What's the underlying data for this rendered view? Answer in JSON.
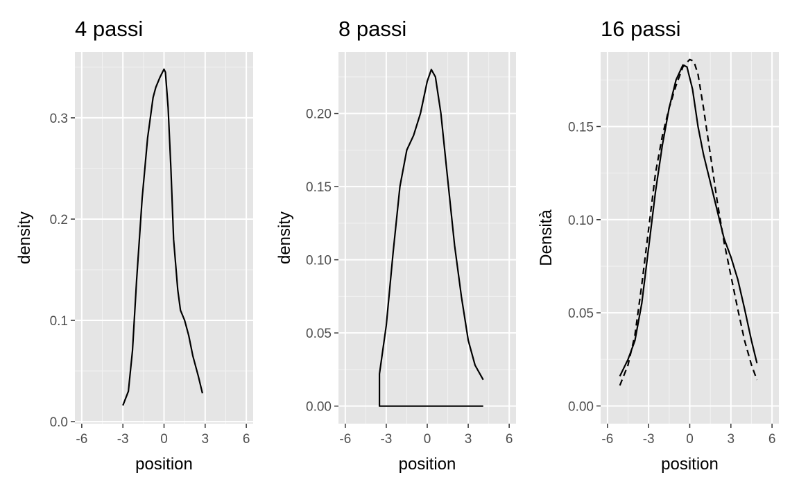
{
  "colors": {
    "panel_background": "#e5e5e5",
    "grid_major": "#ffffff",
    "grid_minor": "#f2f2f2",
    "tick_text": "#4d4d4d",
    "line": "#000000"
  },
  "chart_data": [
    {
      "type": "line",
      "title": "4 passi",
      "xlabel": "position",
      "ylabel": "density",
      "xlim": [
        -6.5,
        6.5
      ],
      "ylim": [
        -0.002,
        0.365
      ],
      "xticks": [
        -6,
        -3,
        0,
        3,
        6
      ],
      "xticklabels": [
        "-6",
        "-3",
        "0",
        "3",
        "6"
      ],
      "yticks": [
        0.0,
        0.1,
        0.2,
        0.3
      ],
      "yticklabels": [
        "0.0",
        "0.1",
        "0.2",
        "0.3"
      ],
      "grid": true,
      "legend": "none",
      "series": [
        {
          "style": "solid",
          "x": [
            -3.0,
            -2.6,
            -2.3,
            -2.0,
            -1.6,
            -1.2,
            -0.8,
            -0.6,
            -0.3,
            0.0,
            0.1,
            0.3,
            0.5,
            0.7,
            1.0,
            1.2,
            1.5,
            1.8,
            2.1,
            2.5,
            2.8
          ],
          "y": [
            0.016,
            0.03,
            0.07,
            0.14,
            0.22,
            0.28,
            0.32,
            0.33,
            0.34,
            0.348,
            0.345,
            0.31,
            0.25,
            0.18,
            0.13,
            0.11,
            0.1,
            0.085,
            0.065,
            0.045,
            0.028
          ]
        }
      ]
    },
    {
      "type": "line",
      "title": "8 passi",
      "xlabel": "position",
      "ylabel": "density",
      "xlim": [
        -6.5,
        6.5
      ],
      "ylim": [
        -0.012,
        0.242
      ],
      "xticks": [
        -6,
        -3,
        0,
        3,
        6
      ],
      "xticklabels": [
        "-6",
        "-3",
        "0",
        "3",
        "6"
      ],
      "yticks": [
        0.0,
        0.05,
        0.1,
        0.15,
        0.2
      ],
      "yticklabels": [
        "0.00",
        "0.05",
        "0.10",
        "0.15",
        "0.20"
      ],
      "grid": true,
      "legend": "none",
      "series": [
        {
          "style": "solid",
          "x": [
            4.1,
            4.1,
            -3.5,
            -3.5,
            -3.0,
            -2.5,
            -2.0,
            -1.5,
            -1.0,
            -0.5,
            0.0,
            0.3,
            0.6,
            1.0,
            1.5,
            2.0,
            2.5,
            3.0,
            3.5,
            4.1
          ],
          "y": [
            0.0,
            0.0,
            0.0,
            0.022,
            0.055,
            0.105,
            0.15,
            0.175,
            0.185,
            0.2,
            0.222,
            0.23,
            0.225,
            0.2,
            0.155,
            0.11,
            0.075,
            0.045,
            0.028,
            0.018
          ]
        }
      ]
    },
    {
      "type": "line",
      "title": "16 passi",
      "xlabel": "position",
      "ylabel": "Densità",
      "xlim": [
        -6.5,
        6.5
      ],
      "ylim": [
        -0.0095,
        0.19
      ],
      "xticks": [
        -6,
        -3,
        0,
        3,
        6
      ],
      "xticklabels": [
        "-6",
        "-3",
        "0",
        "3",
        "6"
      ],
      "yticks": [
        0.0,
        0.05,
        0.1,
        0.15
      ],
      "yticklabels": [
        "0.00",
        "0.05",
        "0.10",
        "0.15"
      ],
      "grid": true,
      "legend": "none",
      "series": [
        {
          "style": "solid",
          "x": [
            -5.1,
            -4.5,
            -4.0,
            -3.5,
            -3.0,
            -2.5,
            -2.0,
            -1.5,
            -1.0,
            -0.5,
            -0.2,
            0.2,
            0.6,
            1.0,
            1.5,
            2.0,
            2.5,
            3.0,
            3.5,
            4.0,
            4.5,
            4.9
          ],
          "y": [
            0.016,
            0.025,
            0.035,
            0.055,
            0.085,
            0.115,
            0.14,
            0.16,
            0.175,
            0.183,
            0.182,
            0.17,
            0.15,
            0.135,
            0.12,
            0.105,
            0.09,
            0.08,
            0.068,
            0.052,
            0.035,
            0.023
          ]
        },
        {
          "style": "dashed",
          "x": [
            -5.1,
            -4.5,
            -4.0,
            -3.5,
            -3.0,
            -2.5,
            -2.0,
            -1.5,
            -1.0,
            -0.5,
            0.0,
            0.3,
            0.6,
            1.0,
            1.5,
            2.0,
            2.5,
            3.0,
            3.5,
            4.0,
            4.5,
            4.9
          ],
          "y": [
            0.011,
            0.022,
            0.038,
            0.065,
            0.095,
            0.125,
            0.145,
            0.16,
            0.172,
            0.182,
            0.186,
            0.185,
            0.178,
            0.16,
            0.135,
            0.11,
            0.088,
            0.07,
            0.052,
            0.035,
            0.022,
            0.014
          ]
        }
      ]
    }
  ]
}
